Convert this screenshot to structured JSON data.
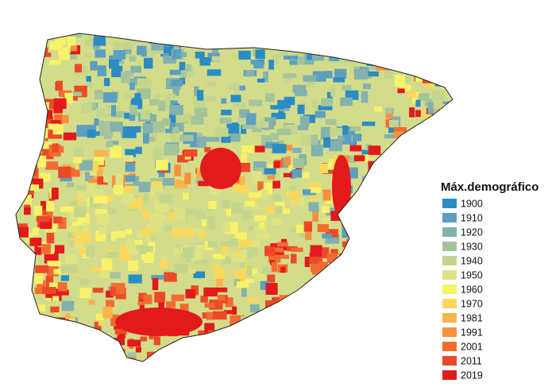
{
  "legend": {
    "title": "Máx.demográfico",
    "items": [
      {
        "label": "1900",
        "color": "#2b8cc4"
      },
      {
        "label": "1910",
        "color": "#5d9fbf"
      },
      {
        "label": "1920",
        "color": "#82b1ae"
      },
      {
        "label": "1930",
        "color": "#a4c59b"
      },
      {
        "label": "1940",
        "color": "#c4d68d"
      },
      {
        "label": "1950",
        "color": "#dfe382"
      },
      {
        "label": "1960",
        "color": "#f8f26a"
      },
      {
        "label": "1970",
        "color": "#fbd85b"
      },
      {
        "label": "1981",
        "color": "#fbb44d"
      },
      {
        "label": "1991",
        "color": "#f6913f"
      },
      {
        "label": "2001",
        "color": "#f26c32"
      },
      {
        "label": "2011",
        "color": "#ec4a26"
      },
      {
        "label": "2019",
        "color": "#e31a1c"
      }
    ]
  }
}
